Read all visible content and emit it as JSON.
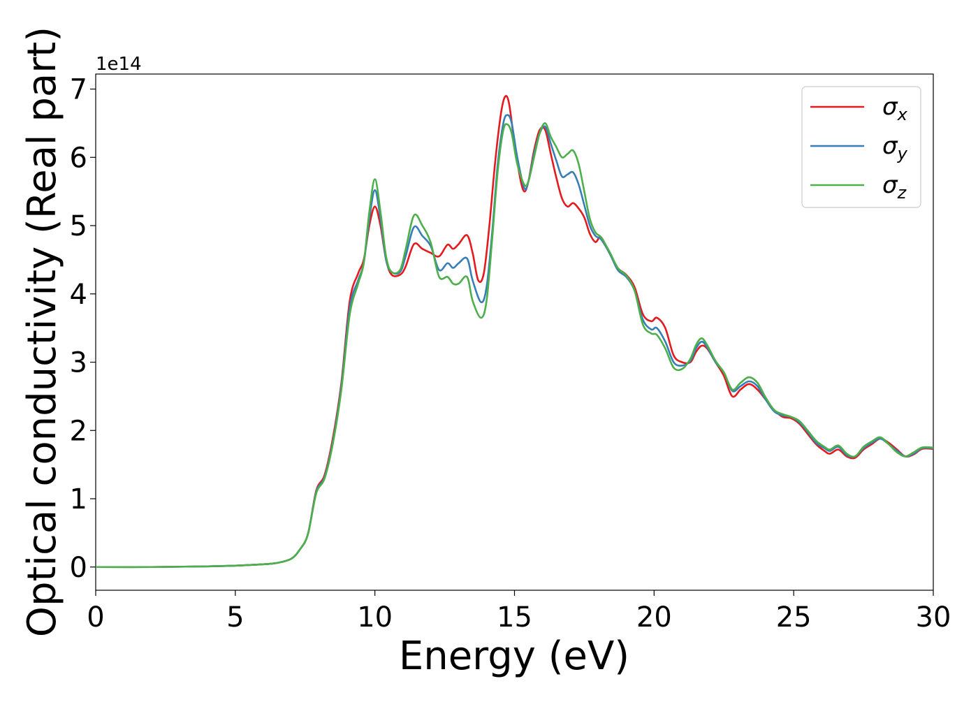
{
  "chart_data": {
    "type": "line",
    "xlabel": "Energy (eV)",
    "ylabel": "Optical conductivity (Real part)",
    "y_offset_label": "1e14",
    "xlim": [
      0,
      30
    ],
    "ylim": [
      -0.34,
      7.22
    ],
    "x_ticks": [
      0,
      5,
      10,
      15,
      20,
      25,
      30
    ],
    "y_ticks": [
      0,
      1,
      2,
      3,
      4,
      5,
      6,
      7
    ],
    "legend_position": "top-right",
    "grid": false,
    "series": [
      {
        "name": "σx",
        "symbol": "σ",
        "subscript": "x",
        "color": "#e41a1c",
        "points": [
          [
            0,
            0
          ],
          [
            2,
            0
          ],
          [
            4,
            0.01
          ],
          [
            5,
            0.02
          ],
          [
            6,
            0.04
          ],
          [
            6.5,
            0.06
          ],
          [
            7,
            0.12
          ],
          [
            7.3,
            0.25
          ],
          [
            7.6,
            0.48
          ],
          [
            7.9,
            1.12
          ],
          [
            8.2,
            1.35
          ],
          [
            8.5,
            1.9
          ],
          [
            8.8,
            2.7
          ],
          [
            9.1,
            3.9
          ],
          [
            9.4,
            4.3
          ],
          [
            9.6,
            4.5
          ],
          [
            9.8,
            5.0
          ],
          [
            10.0,
            5.28
          ],
          [
            10.2,
            5.0
          ],
          [
            10.4,
            4.5
          ],
          [
            10.6,
            4.28
          ],
          [
            10.9,
            4.28
          ],
          [
            11.1,
            4.4
          ],
          [
            11.4,
            4.73
          ],
          [
            11.7,
            4.66
          ],
          [
            12.0,
            4.6
          ],
          [
            12.3,
            4.55
          ],
          [
            12.6,
            4.72
          ],
          [
            12.8,
            4.66
          ],
          [
            13.0,
            4.73
          ],
          [
            13.3,
            4.86
          ],
          [
            13.5,
            4.6
          ],
          [
            13.7,
            4.2
          ],
          [
            13.9,
            4.3
          ],
          [
            14.1,
            5.0
          ],
          [
            14.3,
            5.9
          ],
          [
            14.5,
            6.6
          ],
          [
            14.65,
            6.88
          ],
          [
            14.8,
            6.8
          ],
          [
            15.0,
            6.2
          ],
          [
            15.2,
            5.7
          ],
          [
            15.35,
            5.5
          ],
          [
            15.5,
            5.65
          ],
          [
            15.7,
            6.1
          ],
          [
            15.9,
            6.4
          ],
          [
            16.1,
            6.4
          ],
          [
            16.3,
            6.05
          ],
          [
            16.5,
            5.7
          ],
          [
            16.7,
            5.4
          ],
          [
            16.9,
            5.28
          ],
          [
            17.1,
            5.33
          ],
          [
            17.3,
            5.25
          ],
          [
            17.5,
            5.12
          ],
          [
            17.7,
            4.88
          ],
          [
            17.9,
            4.76
          ],
          [
            18.1,
            4.83
          ],
          [
            18.4,
            4.6
          ],
          [
            18.7,
            4.38
          ],
          [
            19.0,
            4.28
          ],
          [
            19.3,
            4.1
          ],
          [
            19.6,
            3.7
          ],
          [
            19.9,
            3.6
          ],
          [
            20.1,
            3.65
          ],
          [
            20.4,
            3.5
          ],
          [
            20.7,
            3.1
          ],
          [
            21.0,
            3.0
          ],
          [
            21.3,
            3.0
          ],
          [
            21.5,
            3.15
          ],
          [
            21.7,
            3.24
          ],
          [
            21.9,
            3.2
          ],
          [
            22.2,
            3.0
          ],
          [
            22.5,
            2.8
          ],
          [
            22.8,
            2.5
          ],
          [
            23.1,
            2.6
          ],
          [
            23.4,
            2.68
          ],
          [
            23.7,
            2.6
          ],
          [
            24.0,
            2.45
          ],
          [
            24.3,
            2.3
          ],
          [
            24.6,
            2.2
          ],
          [
            24.9,
            2.18
          ],
          [
            25.2,
            2.1
          ],
          [
            25.5,
            1.95
          ],
          [
            25.8,
            1.8
          ],
          [
            26.1,
            1.7
          ],
          [
            26.3,
            1.66
          ],
          [
            26.6,
            1.72
          ],
          [
            26.9,
            1.62
          ],
          [
            27.2,
            1.6
          ],
          [
            27.5,
            1.72
          ],
          [
            27.8,
            1.8
          ],
          [
            28.1,
            1.88
          ],
          [
            28.4,
            1.82
          ],
          [
            28.7,
            1.72
          ],
          [
            29.0,
            1.62
          ],
          [
            29.3,
            1.65
          ],
          [
            29.6,
            1.73
          ],
          [
            30,
            1.73
          ]
        ]
      },
      {
        "name": "σy",
        "symbol": "σ",
        "subscript": "y",
        "color": "#377eb8",
        "points": [
          [
            0,
            0
          ],
          [
            2,
            0
          ],
          [
            4,
            0.01
          ],
          [
            5,
            0.02
          ],
          [
            6,
            0.04
          ],
          [
            6.5,
            0.06
          ],
          [
            7,
            0.12
          ],
          [
            7.3,
            0.25
          ],
          [
            7.6,
            0.48
          ],
          [
            7.9,
            1.1
          ],
          [
            8.2,
            1.32
          ],
          [
            8.5,
            1.85
          ],
          [
            8.8,
            2.65
          ],
          [
            9.1,
            3.8
          ],
          [
            9.4,
            4.2
          ],
          [
            9.6,
            4.45
          ],
          [
            9.8,
            5.1
          ],
          [
            10.0,
            5.52
          ],
          [
            10.2,
            5.1
          ],
          [
            10.4,
            4.5
          ],
          [
            10.6,
            4.32
          ],
          [
            10.9,
            4.32
          ],
          [
            11.1,
            4.55
          ],
          [
            11.4,
            4.98
          ],
          [
            11.7,
            4.85
          ],
          [
            12.0,
            4.7
          ],
          [
            12.3,
            4.35
          ],
          [
            12.6,
            4.45
          ],
          [
            12.8,
            4.38
          ],
          [
            13.0,
            4.45
          ],
          [
            13.3,
            4.52
          ],
          [
            13.5,
            4.2
          ],
          [
            13.8,
            3.88
          ],
          [
            14.0,
            4.1
          ],
          [
            14.2,
            4.9
          ],
          [
            14.4,
            5.9
          ],
          [
            14.6,
            6.5
          ],
          [
            14.75,
            6.62
          ],
          [
            14.9,
            6.5
          ],
          [
            15.1,
            6.0
          ],
          [
            15.35,
            5.55
          ],
          [
            15.5,
            5.65
          ],
          [
            15.7,
            6.05
          ],
          [
            15.9,
            6.35
          ],
          [
            16.1,
            6.45
          ],
          [
            16.3,
            6.2
          ],
          [
            16.5,
            5.95
          ],
          [
            16.7,
            5.72
          ],
          [
            16.9,
            5.75
          ],
          [
            17.1,
            5.78
          ],
          [
            17.3,
            5.6
          ],
          [
            17.5,
            5.3
          ],
          [
            17.7,
            5.0
          ],
          [
            17.9,
            4.85
          ],
          [
            18.1,
            4.8
          ],
          [
            18.4,
            4.6
          ],
          [
            18.7,
            4.35
          ],
          [
            19.0,
            4.25
          ],
          [
            19.3,
            4.05
          ],
          [
            19.6,
            3.62
          ],
          [
            19.9,
            3.48
          ],
          [
            20.1,
            3.5
          ],
          [
            20.4,
            3.3
          ],
          [
            20.7,
            3.0
          ],
          [
            21.0,
            2.95
          ],
          [
            21.3,
            3.02
          ],
          [
            21.5,
            3.2
          ],
          [
            21.7,
            3.3
          ],
          [
            21.9,
            3.22
          ],
          [
            22.2,
            3.0
          ],
          [
            22.5,
            2.85
          ],
          [
            22.8,
            2.58
          ],
          [
            23.1,
            2.65
          ],
          [
            23.4,
            2.72
          ],
          [
            23.7,
            2.65
          ],
          [
            24.0,
            2.45
          ],
          [
            24.3,
            2.28
          ],
          [
            24.6,
            2.22
          ],
          [
            24.9,
            2.2
          ],
          [
            25.2,
            2.12
          ],
          [
            25.5,
            1.98
          ],
          [
            25.8,
            1.82
          ],
          [
            26.1,
            1.74
          ],
          [
            26.3,
            1.7
          ],
          [
            26.6,
            1.76
          ],
          [
            26.9,
            1.64
          ],
          [
            27.2,
            1.62
          ],
          [
            27.5,
            1.74
          ],
          [
            27.8,
            1.82
          ],
          [
            28.1,
            1.88
          ],
          [
            28.4,
            1.8
          ],
          [
            28.7,
            1.7
          ],
          [
            29.0,
            1.62
          ],
          [
            29.3,
            1.66
          ],
          [
            29.6,
            1.74
          ],
          [
            30,
            1.74
          ]
        ]
      },
      {
        "name": "σz",
        "symbol": "σ",
        "subscript": "z",
        "color": "#4daf4a",
        "points": [
          [
            0,
            0
          ],
          [
            2,
            0
          ],
          [
            4,
            0.01
          ],
          [
            5,
            0.02
          ],
          [
            6,
            0.04
          ],
          [
            6.5,
            0.06
          ],
          [
            7,
            0.12
          ],
          [
            7.3,
            0.25
          ],
          [
            7.6,
            0.48
          ],
          [
            7.9,
            1.08
          ],
          [
            8.2,
            1.3
          ],
          [
            8.5,
            1.82
          ],
          [
            8.8,
            2.6
          ],
          [
            9.1,
            3.7
          ],
          [
            9.4,
            4.15
          ],
          [
            9.6,
            4.45
          ],
          [
            9.8,
            5.2
          ],
          [
            10.0,
            5.68
          ],
          [
            10.2,
            5.2
          ],
          [
            10.4,
            4.55
          ],
          [
            10.6,
            4.32
          ],
          [
            10.9,
            4.35
          ],
          [
            11.1,
            4.65
          ],
          [
            11.4,
            5.15
          ],
          [
            11.7,
            5.0
          ],
          [
            12.0,
            4.75
          ],
          [
            12.3,
            4.25
          ],
          [
            12.6,
            4.25
          ],
          [
            12.8,
            4.15
          ],
          [
            13.0,
            4.15
          ],
          [
            13.3,
            4.25
          ],
          [
            13.5,
            3.9
          ],
          [
            13.8,
            3.65
          ],
          [
            14.0,
            3.9
          ],
          [
            14.2,
            4.8
          ],
          [
            14.4,
            5.8
          ],
          [
            14.6,
            6.4
          ],
          [
            14.75,
            6.48
          ],
          [
            14.9,
            6.35
          ],
          [
            15.1,
            5.9
          ],
          [
            15.35,
            5.6
          ],
          [
            15.5,
            5.65
          ],
          [
            15.7,
            6.0
          ],
          [
            15.9,
            6.35
          ],
          [
            16.1,
            6.5
          ],
          [
            16.3,
            6.3
          ],
          [
            16.5,
            6.15
          ],
          [
            16.7,
            6.0
          ],
          [
            16.9,
            6.05
          ],
          [
            17.1,
            6.1
          ],
          [
            17.3,
            5.9
          ],
          [
            17.5,
            5.5
          ],
          [
            17.7,
            5.1
          ],
          [
            17.9,
            4.9
          ],
          [
            18.1,
            4.83
          ],
          [
            18.4,
            4.62
          ],
          [
            18.7,
            4.38
          ],
          [
            19.0,
            4.27
          ],
          [
            19.3,
            4.05
          ],
          [
            19.6,
            3.55
          ],
          [
            19.9,
            3.42
          ],
          [
            20.1,
            3.4
          ],
          [
            20.4,
            3.2
          ],
          [
            20.7,
            2.92
          ],
          [
            21.0,
            2.9
          ],
          [
            21.3,
            3.05
          ],
          [
            21.5,
            3.25
          ],
          [
            21.7,
            3.35
          ],
          [
            21.9,
            3.25
          ],
          [
            22.2,
            3.02
          ],
          [
            22.5,
            2.85
          ],
          [
            22.8,
            2.6
          ],
          [
            23.1,
            2.7
          ],
          [
            23.4,
            2.78
          ],
          [
            23.7,
            2.7
          ],
          [
            24.0,
            2.48
          ],
          [
            24.3,
            2.3
          ],
          [
            24.6,
            2.24
          ],
          [
            24.9,
            2.2
          ],
          [
            25.2,
            2.14
          ],
          [
            25.5,
            2.0
          ],
          [
            25.8,
            1.85
          ],
          [
            26.1,
            1.76
          ],
          [
            26.3,
            1.72
          ],
          [
            26.6,
            1.78
          ],
          [
            26.9,
            1.66
          ],
          [
            27.2,
            1.62
          ],
          [
            27.5,
            1.76
          ],
          [
            27.8,
            1.84
          ],
          [
            28.1,
            1.9
          ],
          [
            28.4,
            1.8
          ],
          [
            28.7,
            1.68
          ],
          [
            29.0,
            1.62
          ],
          [
            29.3,
            1.68
          ],
          [
            29.6,
            1.75
          ],
          [
            30,
            1.75
          ]
        ]
      }
    ]
  }
}
